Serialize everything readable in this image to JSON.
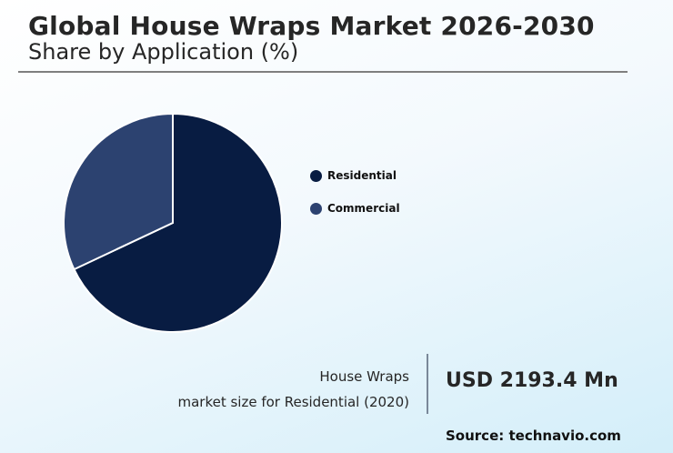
{
  "header": {
    "title": "Global House Wraps Market 2026-2030",
    "subtitle": "Share by Application (%)"
  },
  "legend": [
    {
      "label": "Residential",
      "color": "#081c42"
    },
    {
      "label": "Commercial",
      "color": "#2c4270"
    }
  ],
  "kpi": {
    "line1": "House Wraps",
    "line2": "market size for Residential (2020)",
    "value": "USD 2193.4 Mn"
  },
  "source": "Source: technavio.com",
  "chart_data": {
    "type": "pie",
    "title": "Global House Wraps Market 2026-2030",
    "subtitle": "Share by Application (%)",
    "categories": [
      "Residential",
      "Commercial"
    ],
    "values": [
      68,
      32
    ],
    "colors": [
      "#081c42",
      "#2c4270"
    ],
    "legend_position": "right",
    "annotation": "House Wraps market size for Residential (2020): USD 2193.4 Mn"
  }
}
